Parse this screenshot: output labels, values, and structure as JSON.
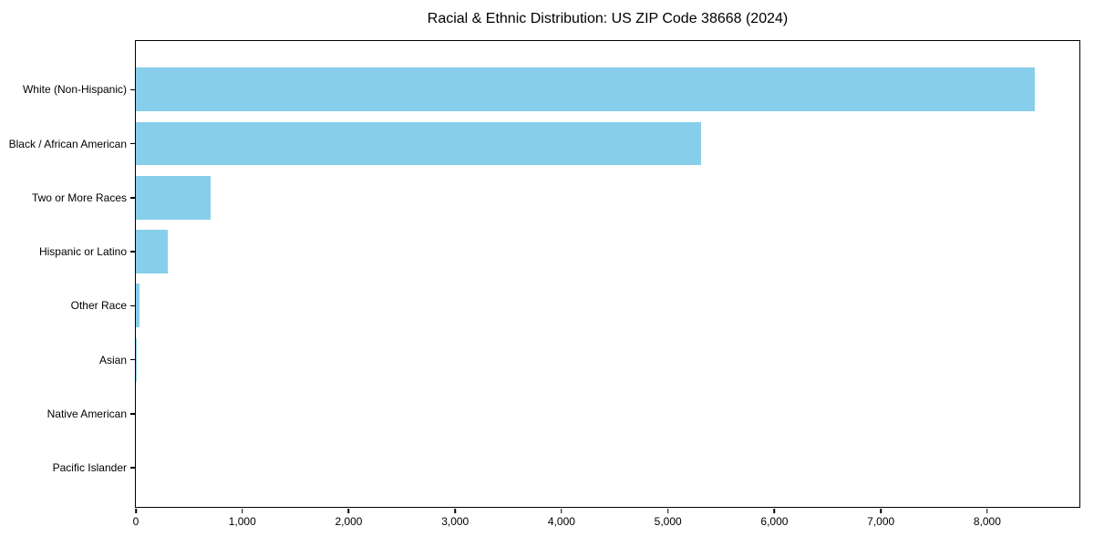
{
  "chart_data": {
    "type": "bar",
    "orientation": "horizontal",
    "title": "Racial & Ethnic Distribution: US ZIP Code 38668 (2024)",
    "categories": [
      "White (Non-Hispanic)",
      "Black / African American",
      "Two or More Races",
      "Hispanic or Latino",
      "Other Race",
      "Asian",
      "Native American",
      "Pacific Islander"
    ],
    "values": [
      8444,
      5308,
      700,
      300,
      34,
      10,
      0,
      0
    ],
    "xlabel": "",
    "ylabel": "",
    "xlim": [
      0,
      8866
    ],
    "x_ticks": [
      0,
      1000,
      2000,
      3000,
      4000,
      5000,
      6000,
      7000,
      8000
    ],
    "x_tick_labels": [
      "0",
      "1,000",
      "2,000",
      "3,000",
      "4,000",
      "5,000",
      "6,000",
      "7,000",
      "8,000"
    ],
    "bar_color": "#87CEEB",
    "axis_color": "#000000",
    "background_color": "#ffffff",
    "grid": false,
    "legend": null
  }
}
